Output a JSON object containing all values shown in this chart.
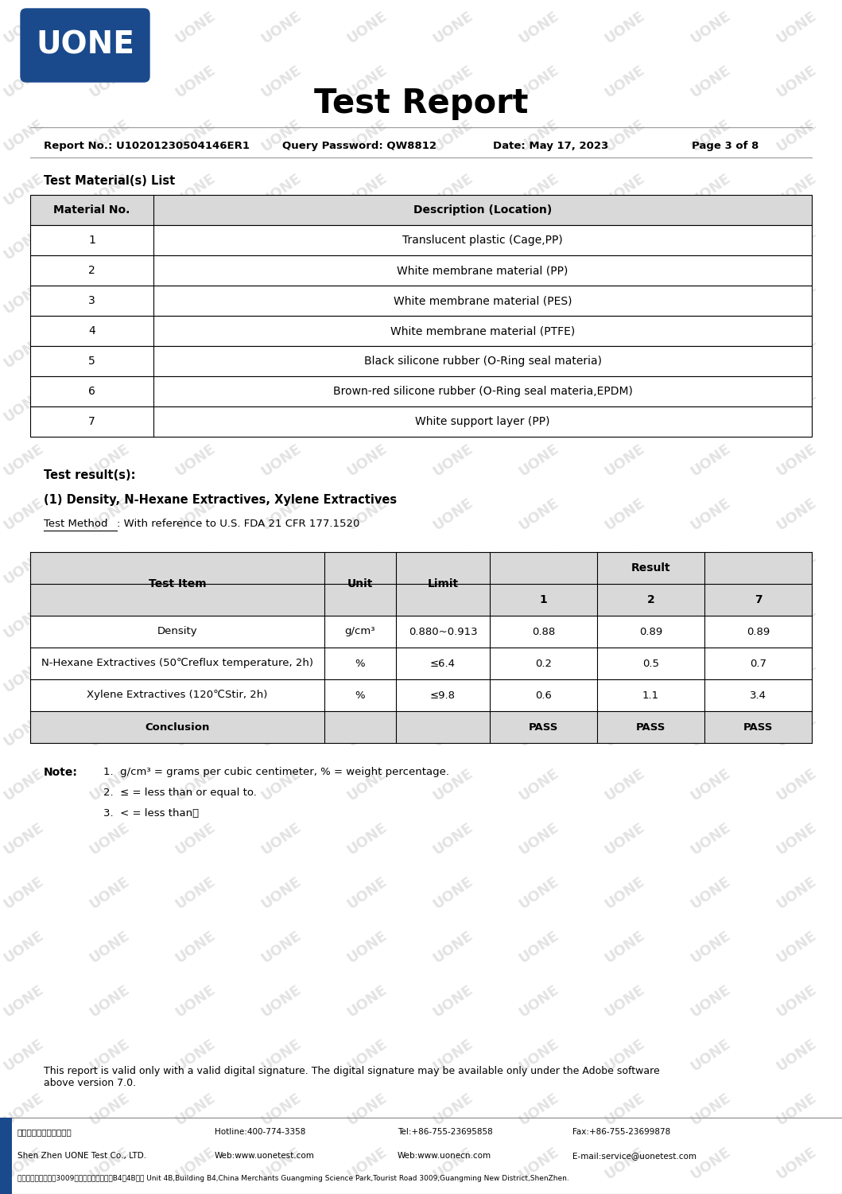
{
  "title": "Test Report",
  "report_no": "Report No.: U10201230504146ER1",
  "query_password": "Query Password: QW8812",
  "date": "Date: May 17, 2023",
  "page": "Page 3 of 8",
  "watermark_text": "UONE",
  "logo_text": "UONE",
  "logo_bg_color": "#1a4a8c",
  "logo_text_color": "#ffffff",
  "section1_title": "Test Material(s) List",
  "materials_header": [
    "Material No.",
    "Description (Location)"
  ],
  "materials": [
    [
      "1",
      "Translucent plastic (Cage,PP)"
    ],
    [
      "2",
      "White membrane material (PP)"
    ],
    [
      "3",
      "White membrane material (PES)"
    ],
    [
      "4",
      "White membrane material (PTFE)"
    ],
    [
      "5",
      "Black silicone rubber (O-Ring seal materia)"
    ],
    [
      "6",
      "Brown-red silicone rubber (O-Ring seal materia,EPDM)"
    ],
    [
      "7",
      "White support layer (PP)"
    ]
  ],
  "test_results_label": "Test result(s):",
  "test_section_title": "(1) Density, N-Hexane Extractives, Xylene Extractives",
  "test_method_label": "Test Method",
  "test_method_text": ": With reference to U.S. FDA 21 CFR 177.1520",
  "results_header2": "Result",
  "results_cols": [
    "1",
    "2",
    "7"
  ],
  "results_rows": [
    [
      "Density",
      "g/cm³",
      "0.880~0.913",
      "0.88",
      "0.89",
      "0.89"
    ],
    [
      "N-Hexane Extractives (50℃reflux temperature, 2h)",
      "%",
      "≤6.4",
      "0.2",
      "0.5",
      "0.7"
    ],
    [
      "Xylene Extractives (120℃Stir, 2h)",
      "%",
      "≤9.8",
      "0.6",
      "1.1",
      "3.4"
    ],
    [
      "Conclusion",
      "",
      "",
      "PASS",
      "PASS",
      "PASS"
    ]
  ],
  "notes_label": "Note:",
  "notes": [
    "g/cm³ = grams per cubic centimeter, % = weight percentage.",
    "≤ = less than or equal to.",
    "< = less than。"
  ],
  "footer_validity": "This report is valid only with a valid digital signature. The digital signature may be available only under the Adobe software\nabove version 7.0.",
  "footer_company_cn": "深圳市宇冒检测有限公司",
  "footer_company_en": "Shen Zhen UONE Test Co., LTD.",
  "footer_hotline": "Hotline:400-774-3358",
  "footer_tel": "Tel:+86-755-23695858",
  "footer_fax": "Fax:+86-755-23699878",
  "footer_web1": "Web:www.uonetest.com",
  "footer_web2": "Web:www.uonecn.com",
  "footer_email": "E-mail:service@uonetest.com",
  "footer_address_cn": "深圳光明新区观光路3009号招商局光明科技图B4栋4B单元",
  "footer_address_en": " Unit 4B,Building B4,China Merchants Guangming Science Park,Tourist Road 3009,Guangming New District,ShenZhen.",
  "table_border_color": "#000000",
  "header_bg_color": "#d9d9d9",
  "bg_color": "#ffffff",
  "text_color": "#000000",
  "footer_bar_color": "#1a4a8c"
}
